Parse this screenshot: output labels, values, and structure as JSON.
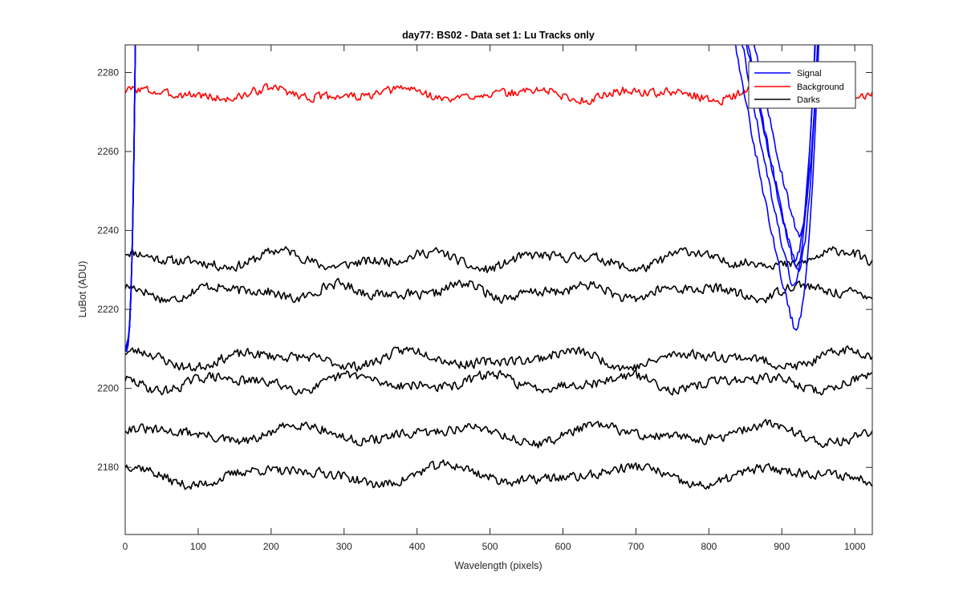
{
  "chart_data": {
    "type": "line",
    "title": "day77: BS02 - Data set 1: Lu Tracks only",
    "xlabel": "Wavelength (pixels)",
    "ylabel": "LuBot (ADU)",
    "xlim": [
      0,
      1024
    ],
    "ylim": [
      2163,
      2287
    ],
    "xticks": [
      0,
      100,
      200,
      300,
      400,
      500,
      600,
      700,
      800,
      900,
      1000
    ],
    "yticks": [
      2180,
      2200,
      2220,
      2240,
      2260,
      2280
    ],
    "grid": false,
    "legend": {
      "placement": "top-right",
      "entries": [
        "Signal",
        "Background",
        "Darks"
      ]
    },
    "colors": {
      "Signal": "#0000ff",
      "Background": "#ff0000",
      "Darks": "#000000"
    },
    "series": [
      {
        "group": "Background",
        "color": "#ff0000",
        "base": 2274.5,
        "noise": 0.9,
        "wave": [
          [
            1.0,
            170,
            0.3
          ],
          [
            0.6,
            95,
            1.1
          ]
        ],
        "seed": 3
      },
      {
        "group": "Darks",
        "color": "#000000",
        "base": 2232.5,
        "noise": 1.0,
        "wave": [
          [
            1.6,
            190,
            0.8
          ],
          [
            0.9,
            110,
            2.0
          ]
        ],
        "seed": 11
      },
      {
        "group": "Darks",
        "color": "#000000",
        "base": 2224.5,
        "noise": 1.0,
        "wave": [
          [
            1.3,
            160,
            2.4
          ],
          [
            0.8,
            90,
            0.5
          ]
        ],
        "seed": 17
      },
      {
        "group": "Darks",
        "color": "#000000",
        "base": 2207.5,
        "noise": 1.0,
        "wave": [
          [
            1.5,
            200,
            1.7
          ],
          [
            0.8,
            120,
            0.2
          ]
        ],
        "seed": 23
      },
      {
        "group": "Darks",
        "color": "#000000",
        "base": 2201.5,
        "noise": 1.0,
        "wave": [
          [
            1.4,
            180,
            3.0
          ],
          [
            0.7,
            100,
            1.4
          ]
        ],
        "seed": 29
      },
      {
        "group": "Darks",
        "color": "#000000",
        "base": 2188.5,
        "noise": 1.0,
        "wave": [
          [
            1.7,
            210,
            0.6
          ],
          [
            0.8,
            130,
            2.6
          ]
        ],
        "seed": 31
      },
      {
        "group": "Darks",
        "color": "#000000",
        "base": 2178.0,
        "noise": 1.0,
        "wave": [
          [
            1.8,
            230,
            1.9
          ],
          [
            0.9,
            140,
            0.9
          ]
        ],
        "seed": 37
      },
      {
        "group": "Signal",
        "color": "#0000ff",
        "min_x": 918,
        "min_y": 2215,
        "seed": 41
      },
      {
        "group": "Signal",
        "color": "#0000ff",
        "min_x": 915,
        "min_y": 2226,
        "seed": 43
      },
      {
        "group": "Signal",
        "color": "#0000ff",
        "min_x": 920,
        "min_y": 2230,
        "seed": 47
      },
      {
        "group": "Signal",
        "color": "#0000ff",
        "min_x": 917,
        "min_y": 2233,
        "seed": 53
      },
      {
        "group": "Signal",
        "color": "#0000ff",
        "min_x": 922,
        "min_y": 2239,
        "seed": 59
      }
    ]
  }
}
